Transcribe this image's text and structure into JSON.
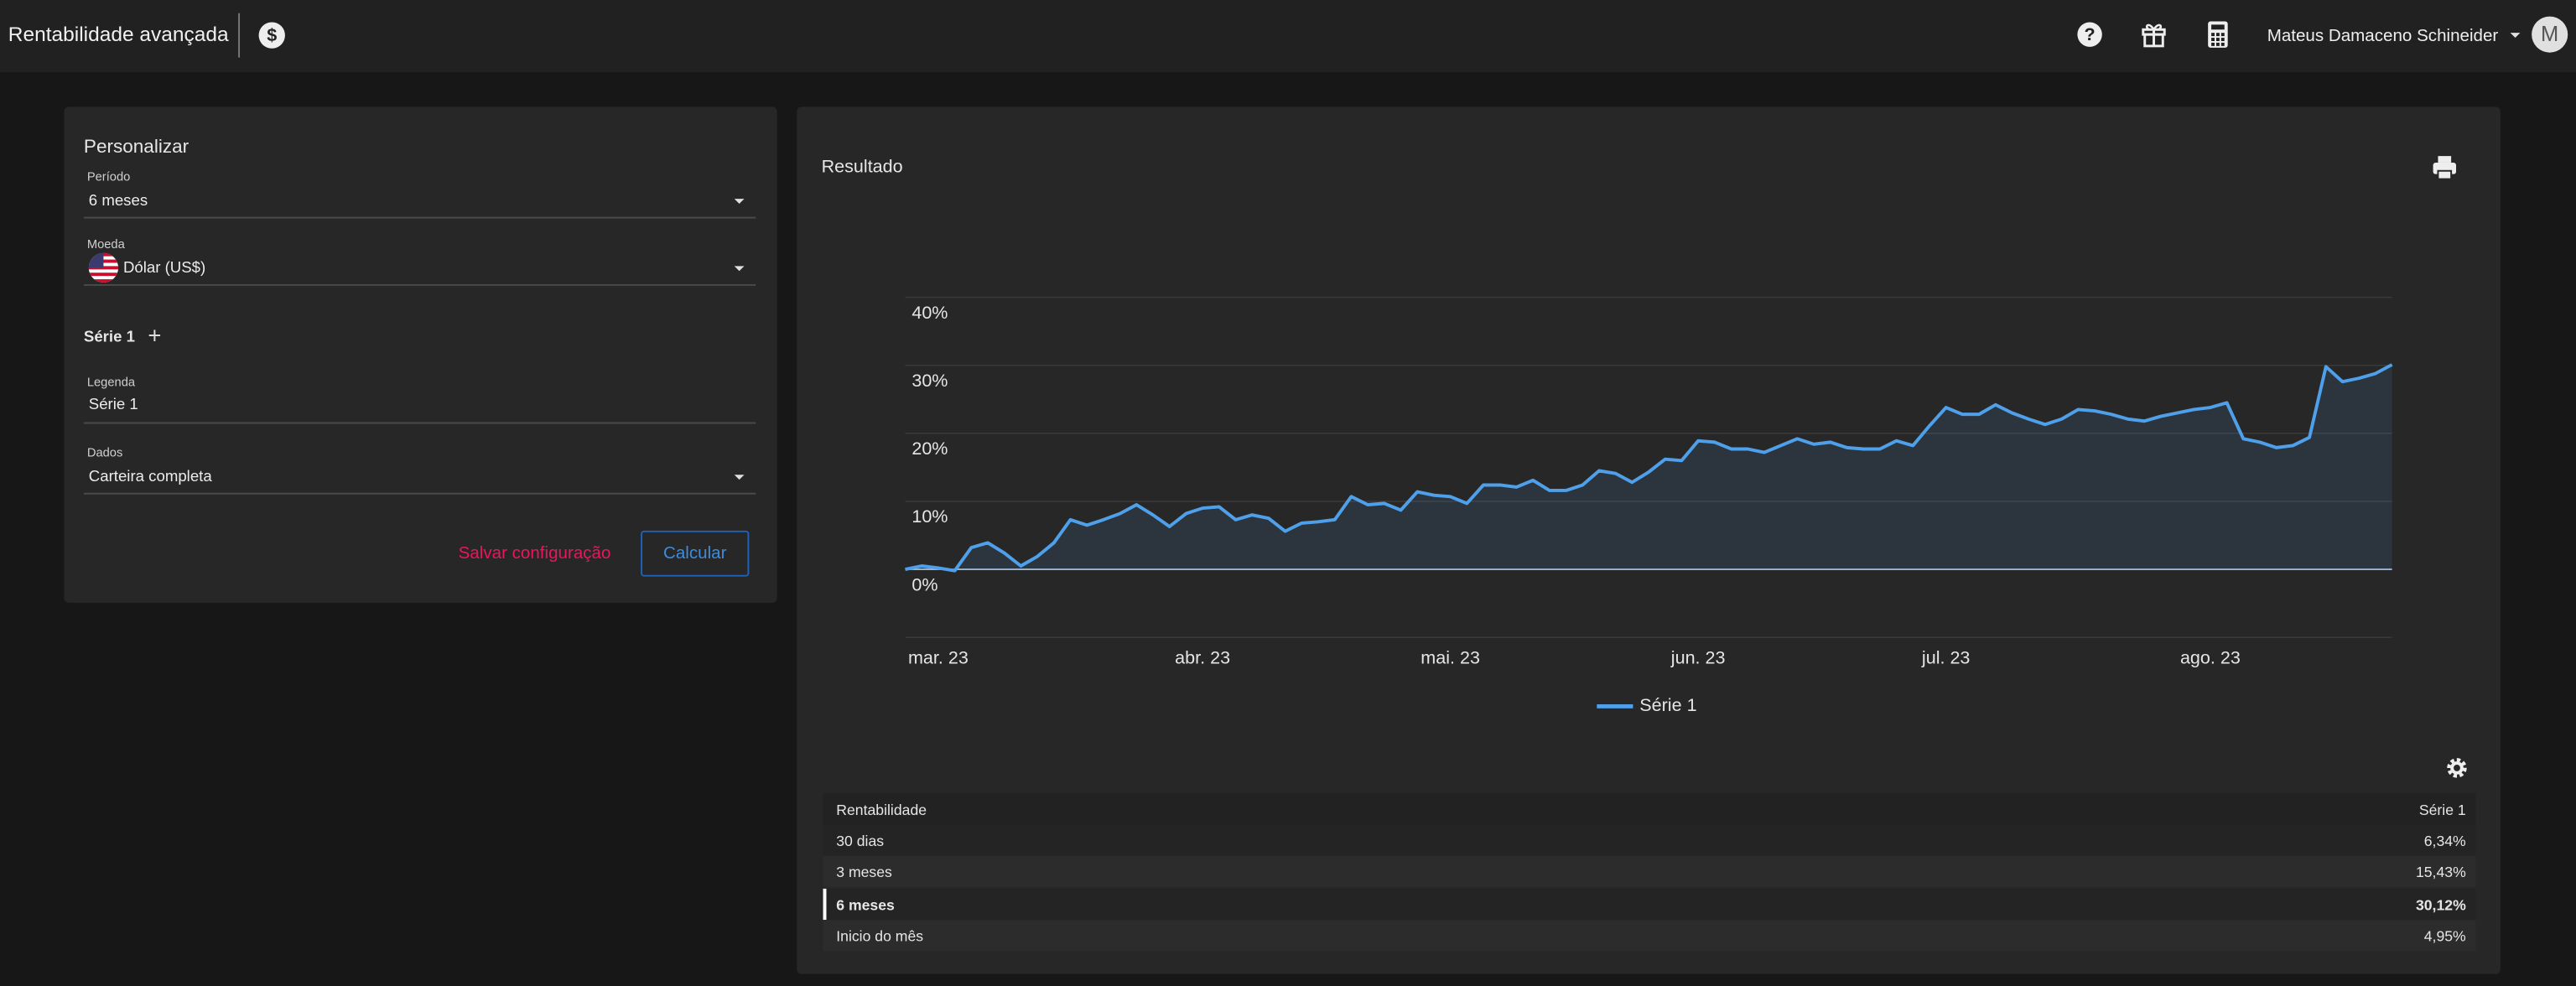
{
  "header": {
    "title": "Rentabilidade avançada",
    "user": "Mateus Damaceno Schineider",
    "avatar": "M"
  },
  "form": {
    "title": "Personalizar",
    "period": {
      "label": "Período",
      "value": "6 meses"
    },
    "currency": {
      "label": "Moeda",
      "value": "Dólar (US$)"
    },
    "series_title": "Série 1",
    "legend": {
      "label": "Legenda",
      "value": "Série 1"
    },
    "data": {
      "label": "Dados",
      "value": "Carteira completa"
    },
    "save": "Salvar configuração",
    "calculate": "Calcular"
  },
  "result_title": "Resultado",
  "chart_data": {
    "type": "line",
    "categories": [
      null,
      null,
      "mar. 23",
      null,
      null,
      null,
      null,
      null,
      null,
      null,
      null,
      null,
      null,
      null,
      null,
      null,
      null,
      null,
      "abr. 23",
      null,
      null,
      null,
      null,
      null,
      null,
      null,
      null,
      null,
      null,
      null,
      null,
      null,
      null,
      "mai. 23",
      null,
      null,
      null,
      null,
      null,
      null,
      null,
      null,
      null,
      null,
      null,
      null,
      null,
      null,
      "jun. 23",
      null,
      null,
      null,
      null,
      null,
      null,
      null,
      null,
      null,
      null,
      null,
      null,
      null,
      null,
      "jul. 23",
      null,
      null,
      null,
      null,
      null,
      null,
      null,
      null,
      null,
      null,
      null,
      null,
      null,
      null,
      null,
      "ago. 23",
      null,
      null,
      null,
      null,
      null,
      null,
      null,
      null,
      null,
      null,
      null
    ],
    "series": [
      {
        "name": "Série 1",
        "color": "#4fa0ea",
        "values": [
          0,
          0.5,
          0.2,
          -0.2,
          3.2,
          3.9,
          2.4,
          0.5,
          1.9,
          3.9,
          7.3,
          6.5,
          7.3,
          8.2,
          9.5,
          8,
          6.3,
          8.2,
          9,
          9.2,
          7.3,
          8,
          7.5,
          5.6,
          6.8,
          7,
          7.3,
          10.7,
          9.5,
          9.7,
          8.7,
          11.4,
          10.9,
          10.7,
          9.7,
          12.4,
          12.4,
          12.1,
          13.1,
          11.6,
          11.6,
          12.4,
          14.5,
          14.1,
          12.8,
          14.3,
          16.2,
          16,
          18.9,
          18.7,
          17.7,
          17.7,
          17.2,
          18.2,
          19.2,
          18.4,
          18.7,
          17.9,
          17.7,
          17.7,
          18.9,
          18.2,
          21.1,
          23.8,
          22.8,
          22.8,
          24.2,
          23,
          22.1,
          21.3,
          22.1,
          23.5,
          23.3,
          22.8,
          22.1,
          21.8,
          22.5,
          23,
          23.5,
          23.8,
          24.5,
          19.2,
          18.7,
          17.9,
          18.2,
          19.4,
          29.8,
          27.6,
          28.1,
          28.8,
          30.1
        ]
      }
    ],
    "ylim": [
      -10,
      40
    ],
    "yticks": [
      {
        "value": 0,
        "label": "0%"
      },
      {
        "value": 10,
        "label": "10%"
      },
      {
        "value": 20,
        "label": "20%"
      },
      {
        "value": 30,
        "label": "30%"
      },
      {
        "value": 40,
        "label": "40%"
      }
    ],
    "grid": true
  },
  "table": {
    "header": [
      "Rentabilidade",
      "Série 1"
    ],
    "rows": [
      [
        "30 dias",
        "6,34%"
      ],
      [
        "3 meses",
        "15,43%"
      ],
      [
        "6 meses",
        "30,12%"
      ],
      [
        "Inicio do mês",
        "4,95%"
      ]
    ],
    "selected_row": 2
  }
}
